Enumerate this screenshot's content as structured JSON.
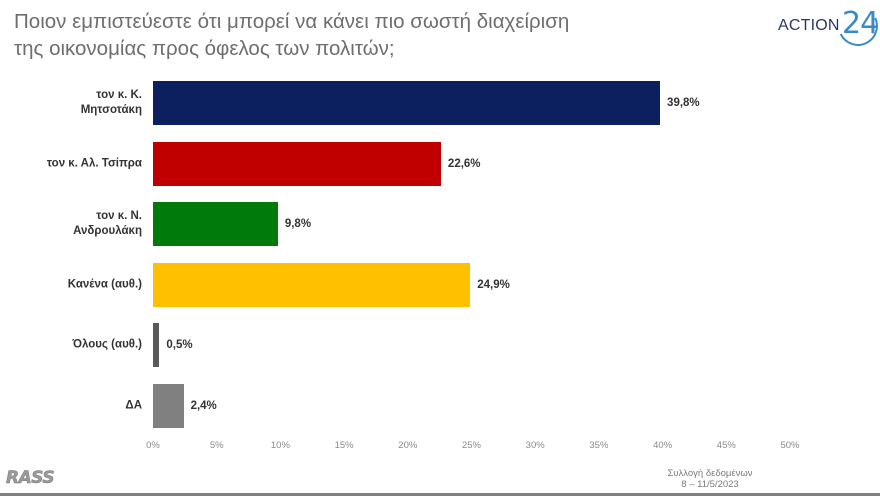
{
  "title": {
    "line1": "Ποιον εμπιστεύεστε ότι μπορεί να κάνει πιο σωστή διαχείριση",
    "line2": "της οικονομίας προς όφελος των πολιτών;"
  },
  "logo": {
    "word": "ACTION",
    "number": "24",
    "word_color": "#2c3566",
    "number_color": "#3a8ac7"
  },
  "chart_data": {
    "type": "bar",
    "orientation": "horizontal",
    "title": "Ποιον εμπιστεύεστε ότι μπορεί να κάνει πιο σωστή διαχείριση της οικονομίας προς όφελος των πολιτών;",
    "xlabel": "",
    "ylabel": "",
    "xlim": [
      0,
      50
    ],
    "grid": false,
    "legend": null,
    "categories": [
      "τον κ. Κ. Μητσοτάκη",
      "τον κ. Αλ. Τσίπρα",
      "τον κ. Ν. Ανδρουλάκη",
      "Κανένα (αυθ.)",
      "Όλους (αυθ.)",
      "ΔΑ"
    ],
    "values": [
      39.8,
      22.6,
      9.8,
      24.9,
      0.5,
      2.4
    ],
    "value_labels": [
      "39,8%",
      "22,6%",
      "9,8%",
      "24,9%",
      "0,5%",
      "2,4%"
    ],
    "colors": [
      "#0c2060",
      "#c00000",
      "#007a0a",
      "#ffc000",
      "#595959",
      "#808080"
    ],
    "x_ticks": [
      "0%",
      "5%",
      "10%",
      "15%",
      "20%",
      "25%",
      "30%",
      "35%",
      "40%",
      "45%",
      "50%"
    ]
  },
  "rows": [
    {
      "label_lines": [
        "τον κ. Κ.",
        "Μητσοτάκη"
      ],
      "value": 39.8,
      "value_label": "39,8%",
      "color": "#0c2060"
    },
    {
      "label_lines": [
        "τον κ. Αλ. Τσίπρα"
      ],
      "value": 22.6,
      "value_label": "22,6%",
      "color": "#c00000"
    },
    {
      "label_lines": [
        "τον κ. Ν.",
        "Ανδρουλάκη"
      ],
      "value": 9.8,
      "value_label": "9,8%",
      "color": "#007a0a"
    },
    {
      "label_lines": [
        "Κανένα (αυθ.)"
      ],
      "value": 24.9,
      "value_label": "24,9%",
      "color": "#ffc000"
    },
    {
      "label_lines": [
        "Όλους (αυθ.)"
      ],
      "value": 0.5,
      "value_label": "0,5%",
      "color": "#595959"
    },
    {
      "label_lines": [
        "ΔΑ"
      ],
      "value": 2.4,
      "value_label": "2,4%",
      "color": "#808080"
    }
  ],
  "axis": {
    "ticks": [
      "0%",
      "5%",
      "10%",
      "15%",
      "20%",
      "25%",
      "30%",
      "35%",
      "40%",
      "45%",
      "50%"
    ]
  },
  "footer": {
    "pollster_logo": "RASS",
    "source_line1": "Συλλογή δεδομένων",
    "source_line2": "8 – 11/5/2023"
  }
}
